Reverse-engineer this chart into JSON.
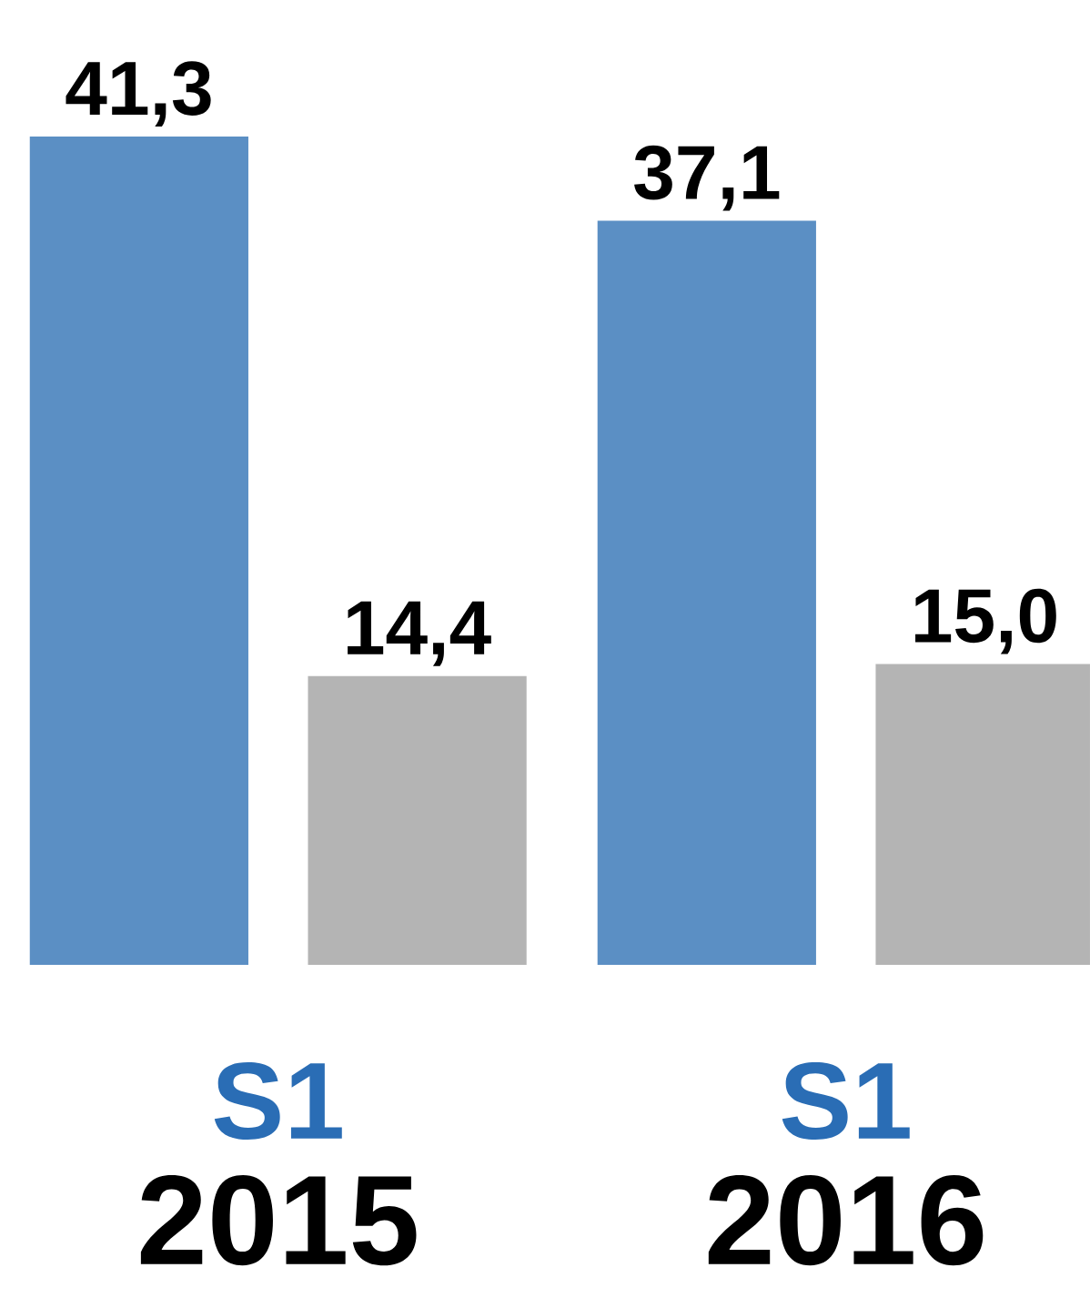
{
  "chart_data": {
    "type": "bar",
    "categories": [
      "2015",
      "2016"
    ],
    "series": [
      {
        "color": "#5b8fc4",
        "values": [
          41.3,
          37.1
        ],
        "value_labels": [
          "41,3",
          "37,1"
        ]
      },
      {
        "color": "#b4b4b4",
        "values": [
          14.4,
          15.0
        ],
        "value_labels": [
          "14,4",
          "15,0"
        ]
      }
    ],
    "annotations": [
      "S1",
      "S1"
    ]
  }
}
